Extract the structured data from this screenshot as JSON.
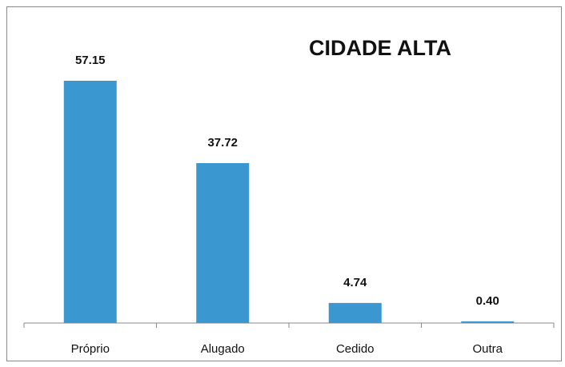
{
  "chart_data": {
    "type": "bar",
    "title": "CIDADE ALTA",
    "categories": [
      "Próprio",
      "Alugado",
      "Cedido",
      "Outra"
    ],
    "values": [
      57.15,
      37.72,
      4.74,
      0.4
    ],
    "value_labels": [
      "57.15",
      "37.72",
      "4.74",
      "0.40"
    ],
    "color": "#3a97d0"
  }
}
